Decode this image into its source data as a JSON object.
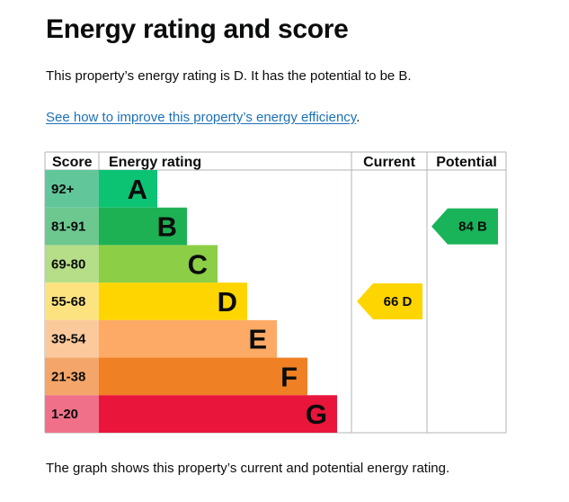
{
  "page": {
    "title": "Energy rating and score",
    "intro": "This property’s energy rating is D. It has the potential to be B.",
    "link_text": "See how to improve this property’s energy efficiency",
    "link_suffix": ".",
    "footer": "The graph shows this property’s current and potential energy rating."
  },
  "chart_data": {
    "type": "table",
    "headers": {
      "score": "Score",
      "rating": "Energy rating",
      "current": "Current",
      "potential": "Potential"
    },
    "bands": [
      {
        "score": "92+",
        "letter": "A",
        "color": "#0e8a56",
        "score_bg": "#62c69b",
        "bar": "#0cc374"
      },
      {
        "score": "81-91",
        "letter": "B",
        "color": "#19b459",
        "score_bg": "#6dc890",
        "bar": "#1db154"
      },
      {
        "score": "69-80",
        "letter": "C",
        "color": "#8dce46",
        "score_bg": "#b6de88",
        "bar": "#8cce46"
      },
      {
        "score": "55-68",
        "letter": "D",
        "color": "#ffd500",
        "score_bg": "#fce380",
        "bar": "#ffd500"
      },
      {
        "score": "39-54",
        "letter": "E",
        "color": "#fcaa65",
        "score_bg": "#fbc99c",
        "bar": "#fcaa65"
      },
      {
        "score": "21-38",
        "letter": "F",
        "color": "#ef8023",
        "score_bg": "#f4a66a",
        "bar": "#ef8023"
      },
      {
        "score": "1-20",
        "letter": "G",
        "color": "#e9153b",
        "score_bg": "#f0708a",
        "bar": "#e9153b"
      }
    ],
    "current": {
      "score": 66,
      "letter": "D",
      "label": "66  D",
      "color": "#ffd500"
    },
    "potential": {
      "score": 84,
      "letter": "B",
      "label": "84  B",
      "color": "#19b459"
    }
  }
}
